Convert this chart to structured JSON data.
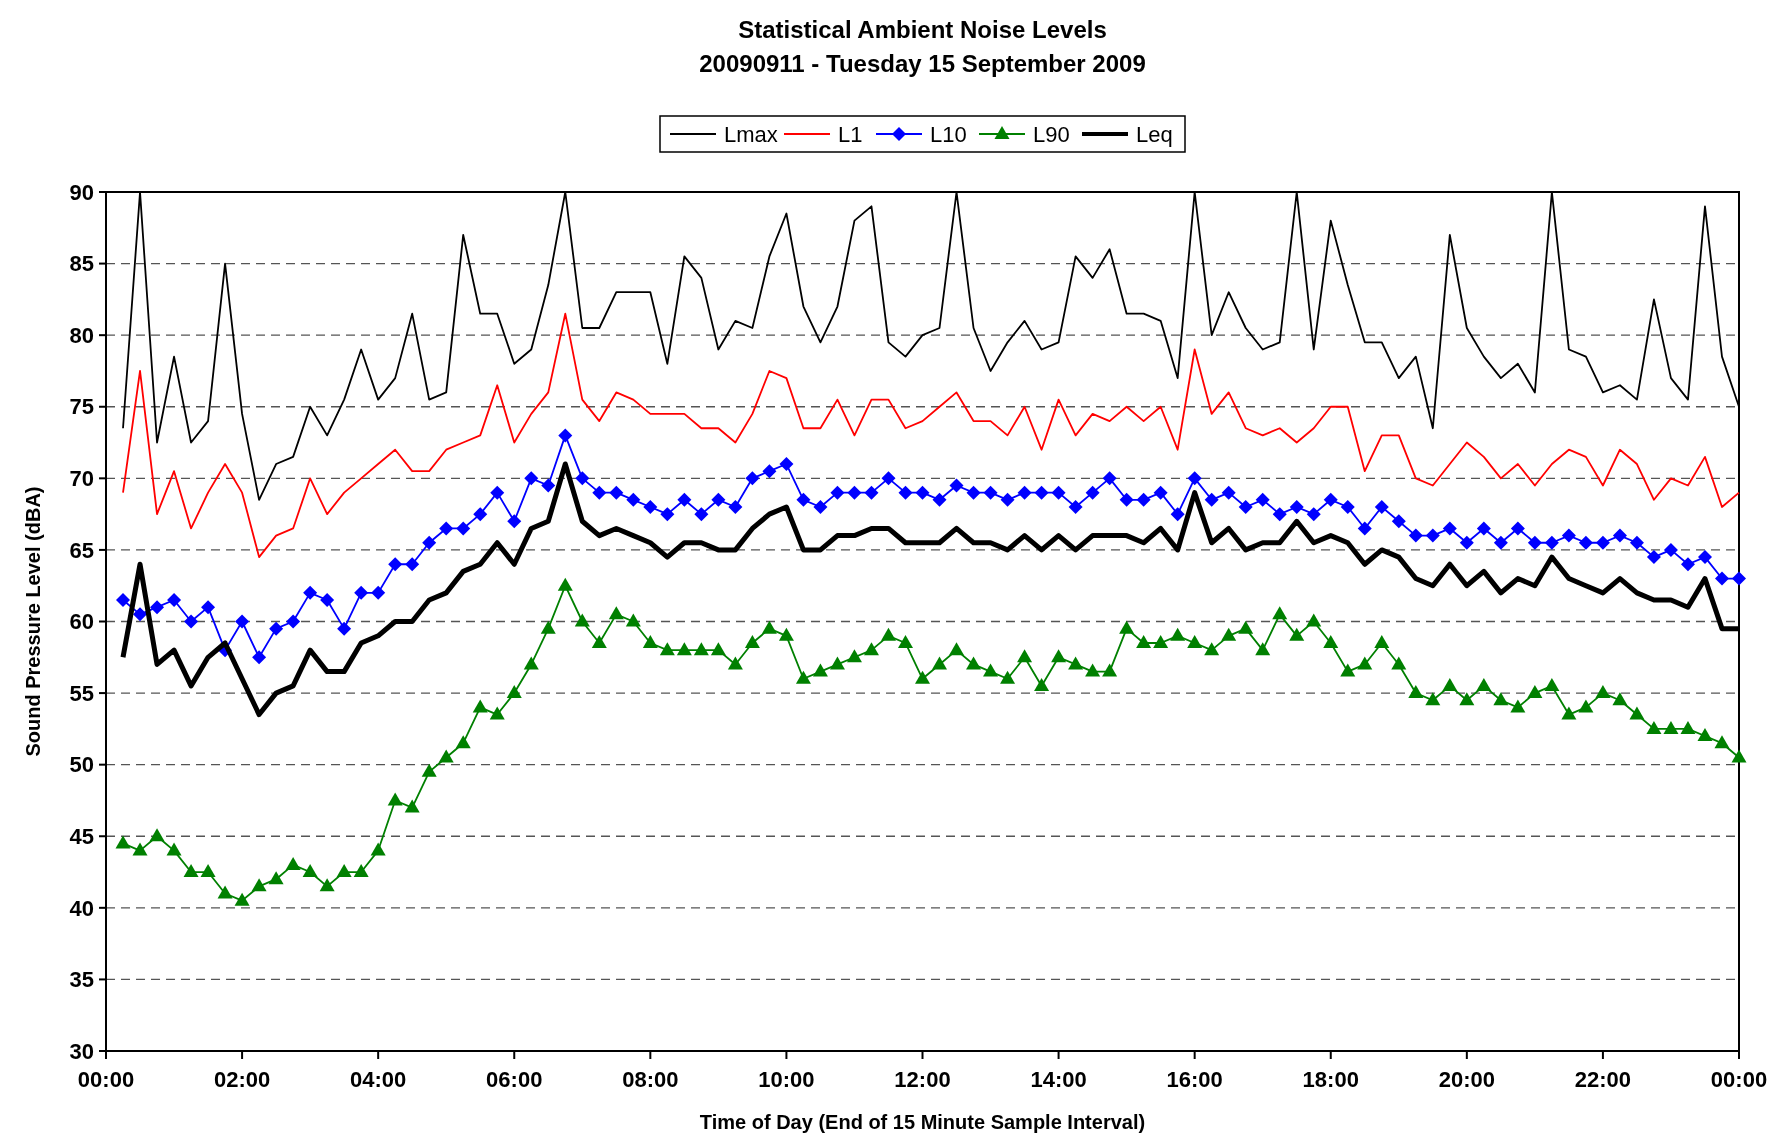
{
  "chart_data": {
    "type": "line",
    "title": "Statistical Ambient Noise Levels",
    "subtitle": "20090911 - Tuesday 15 September 2009",
    "xlabel": "Time of Day (End of 15 Minute Sample Interval)",
    "ylabel": "Sound Pressure Level (dBA)",
    "x": [
      0.25,
      0.5,
      0.75,
      1,
      1.25,
      1.5,
      1.75,
      2,
      2.25,
      2.5,
      2.75,
      3,
      3.25,
      3.5,
      3.75,
      4,
      4.25,
      4.5,
      4.75,
      5,
      5.25,
      5.5,
      5.75,
      6,
      6.25,
      6.5,
      6.75,
      7,
      7.25,
      7.5,
      7.75,
      8,
      8.25,
      8.5,
      8.75,
      9,
      9.25,
      9.5,
      9.75,
      10,
      10.25,
      10.5,
      10.75,
      11,
      11.25,
      11.5,
      11.75,
      12,
      12.25,
      12.5,
      12.75,
      13,
      13.25,
      13.5,
      13.75,
      14,
      14.25,
      14.5,
      14.75,
      15,
      15.25,
      15.5,
      15.75,
      16,
      16.25,
      16.5,
      16.75,
      17,
      17.25,
      17.5,
      17.75,
      18,
      18.25,
      18.5,
      18.75,
      19,
      19.25,
      19.5,
      19.75,
      20,
      20.25,
      20.5,
      20.75,
      21,
      21.25,
      21.5,
      21.75,
      22,
      22.25,
      22.5,
      22.75,
      23,
      23.25,
      23.5,
      23.75,
      24
    ],
    "xlim": [
      0,
      24
    ],
    "xticks": [
      {
        "value": 0,
        "label": "00:00"
      },
      {
        "value": 2,
        "label": "02:00"
      },
      {
        "value": 4,
        "label": "04:00"
      },
      {
        "value": 6,
        "label": "06:00"
      },
      {
        "value": 8,
        "label": "08:00"
      },
      {
        "value": 10,
        "label": "10:00"
      },
      {
        "value": 12,
        "label": "12:00"
      },
      {
        "value": 14,
        "label": "14:00"
      },
      {
        "value": 16,
        "label": "16:00"
      },
      {
        "value": 18,
        "label": "18:00"
      },
      {
        "value": 20,
        "label": "20:00"
      },
      {
        "value": 22,
        "label": "22:00"
      },
      {
        "value": 24,
        "label": "00:00"
      }
    ],
    "ylim": [
      30,
      90
    ],
    "yticks": [
      30,
      35,
      40,
      45,
      50,
      55,
      60,
      65,
      70,
      75,
      80,
      85,
      90
    ],
    "grid": "y",
    "legend": "top",
    "line_style": "solid",
    "series": [
      {
        "name": "Lmax",
        "color": "#000000",
        "marker": "none",
        "values": [
          73.5,
          90,
          72.5,
          78.5,
          72.5,
          74,
          85,
          74.5,
          68.5,
          71,
          71.5,
          75,
          73,
          75.5,
          79,
          75.5,
          77,
          81.5,
          75.5,
          76,
          87,
          81.5,
          81.5,
          78,
          79,
          83.5,
          90,
          80.5,
          80.5,
          83,
          83,
          83,
          78,
          85.5,
          84,
          79,
          81,
          80.5,
          85.5,
          88.5,
          82,
          79.5,
          82,
          88,
          89,
          79.5,
          78.5,
          80,
          80.5,
          90,
          80.5,
          77.5,
          79.5,
          81,
          79,
          79.5,
          85.5,
          84,
          86,
          81.5,
          81.5,
          81,
          77,
          90,
          80,
          83,
          80.5,
          79,
          79.5,
          90,
          79,
          88,
          83.5,
          79.5,
          79.5,
          77,
          78.5,
          73.5,
          87,
          80.5,
          78.5,
          77,
          78,
          76,
          90,
          79,
          78.5,
          76,
          76.5,
          75.5,
          82.5,
          77,
          75.5,
          89,
          78.5,
          75
        ]
      },
      {
        "name": "L1",
        "color": "#ff0000",
        "marker": "none",
        "values": [
          69,
          77.5,
          67.5,
          70.5,
          66.5,
          69,
          71,
          69,
          64.5,
          66,
          66.5,
          70,
          67.5,
          69,
          70,
          71,
          72,
          70.5,
          70.5,
          72,
          72.5,
          73,
          76.5,
          72.5,
          74.5,
          76,
          81.5,
          75.5,
          74,
          76,
          75.5,
          74.5,
          74.5,
          74.5,
          73.5,
          73.5,
          72.5,
          74.5,
          77.5,
          77,
          73.5,
          73.5,
          75.5,
          73,
          75.5,
          75.5,
          73.5,
          74,
          75,
          76,
          74,
          74,
          73,
          75,
          72,
          75.5,
          73,
          74.5,
          74,
          75,
          74,
          75,
          72,
          79,
          74.5,
          76,
          73.5,
          73,
          73.5,
          72.5,
          73.5,
          75,
          75,
          70.5,
          73,
          73,
          70,
          69.5,
          71,
          72.5,
          71.5,
          70,
          71,
          69.5,
          71,
          72,
          71.5,
          69.5,
          72,
          71,
          68.5,
          70,
          69.5,
          71.5,
          68,
          69
        ]
      },
      {
        "name": "L10",
        "color": "#0000ff",
        "marker": "diamond",
        "values": [
          61.5,
          60.5,
          61,
          61.5,
          60,
          61,
          58,
          60,
          57.5,
          59.5,
          60,
          62,
          61.5,
          59.5,
          62,
          62,
          64,
          64,
          65.5,
          66.5,
          66.5,
          67.5,
          69,
          67,
          70,
          69.5,
          73,
          70,
          69,
          69,
          68.5,
          68,
          67.5,
          68.5,
          67.5,
          68.5,
          68,
          70,
          70.5,
          71,
          68.5,
          68,
          69,
          69,
          69,
          70,
          69,
          69,
          68.5,
          69.5,
          69,
          69,
          68.5,
          69,
          69,
          69,
          68,
          69,
          70,
          68.5,
          68.5,
          69,
          67.5,
          70,
          68.5,
          69,
          68,
          68.5,
          67.5,
          68,
          67.5,
          68.5,
          68,
          66.5,
          68,
          67,
          66,
          66,
          66.5,
          65.5,
          66.5,
          65.5,
          66.5,
          65.5,
          65.5,
          66,
          65.5,
          65.5,
          66,
          65.5,
          64.5,
          65,
          64,
          64.5,
          63,
          63
        ]
      },
      {
        "name": "L90",
        "color": "#008000",
        "marker": "triangle",
        "values": [
          44.5,
          44,
          45,
          44,
          42.5,
          42.5,
          41,
          40.5,
          41.5,
          42,
          43,
          42.5,
          41.5,
          42.5,
          42.5,
          44,
          47.5,
          47,
          49.5,
          50.5,
          51.5,
          54,
          53.5,
          55,
          57,
          59.5,
          62.5,
          60,
          58.5,
          60.5,
          60,
          58.5,
          58,
          58,
          58,
          58,
          57,
          58.5,
          59.5,
          59,
          56,
          56.5,
          57,
          57.5,
          58,
          59,
          58.5,
          56,
          57,
          58,
          57,
          56.5,
          56,
          57.5,
          55.5,
          57.5,
          57,
          56.5,
          56.5,
          59.5,
          58.5,
          58.5,
          59,
          58.5,
          58,
          59,
          59.5,
          58,
          60.5,
          59,
          60,
          58.5,
          56.5,
          57,
          58.5,
          57,
          55,
          54.5,
          55.5,
          54.5,
          55.5,
          54.5,
          54,
          55,
          55.5,
          53.5,
          54,
          55,
          54.5,
          53.5,
          52.5,
          52.5,
          52.5,
          52,
          51.5,
          50.5
        ]
      },
      {
        "name": "Leq",
        "color": "#000000",
        "marker": "none",
        "values": [
          57.5,
          64,
          57,
          58,
          55.5,
          57.5,
          58.5,
          56,
          53.5,
          55,
          55.5,
          58,
          56.5,
          56.5,
          58.5,
          59,
          60,
          60,
          61.5,
          62,
          63.5,
          64,
          65.5,
          64,
          66.5,
          67,
          71,
          67,
          66,
          66.5,
          66,
          65.5,
          64.5,
          65.5,
          65.5,
          65,
          65,
          66.5,
          67.5,
          68,
          65,
          65,
          66,
          66,
          66.5,
          66.5,
          65.5,
          65.5,
          65.5,
          66.5,
          65.5,
          65.5,
          65,
          66,
          65,
          66,
          65,
          66,
          66,
          66,
          65.5,
          66.5,
          65,
          69,
          65.5,
          66.5,
          65,
          65.5,
          65.5,
          67,
          65.5,
          66,
          65.5,
          64,
          65,
          64.5,
          63,
          62.5,
          64,
          62.5,
          63.5,
          62,
          63,
          62.5,
          64.5,
          63,
          62.5,
          62,
          63,
          62,
          61.5,
          61.5,
          61,
          63,
          59.5,
          59.5
        ]
      }
    ]
  }
}
